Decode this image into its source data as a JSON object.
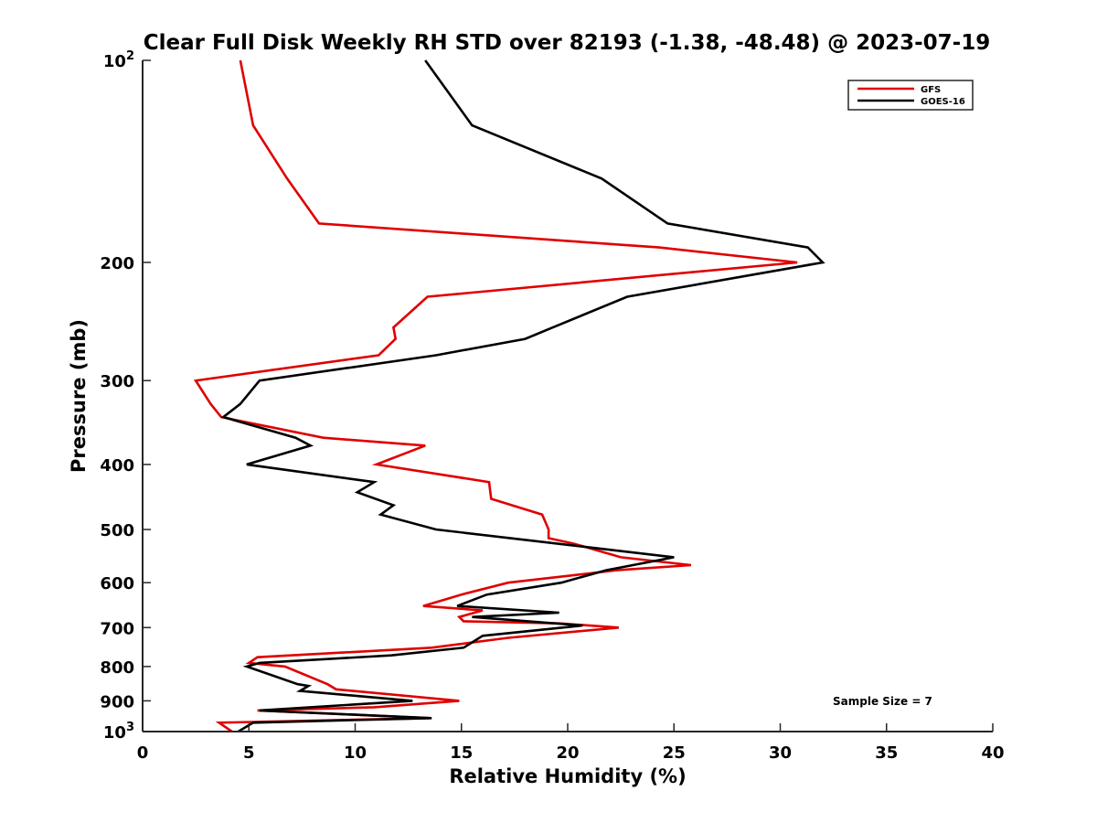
{
  "chart_data": {
    "type": "line",
    "title": "Clear Full Disk Weekly RH STD over 82193 (-1.38, -48.48) @ 2023-07-19",
    "xlabel": "Relative Humidity (%)",
    "ylabel": "Pressure (mb)",
    "xlim": [
      0,
      40
    ],
    "ylim": [
      100,
      1000
    ],
    "y_scale": "log",
    "y_reversed": true,
    "x_ticks": [
      "0",
      "5",
      "10",
      "15",
      "20",
      "25",
      "30",
      "35",
      "40"
    ],
    "y_ticks": [
      {
        "value": 100,
        "label": "10",
        "sup": "2"
      },
      {
        "value": 200,
        "label": "200"
      },
      {
        "value": 300,
        "label": "300"
      },
      {
        "value": 400,
        "label": "400"
      },
      {
        "value": 500,
        "label": "500"
      },
      {
        "value": 600,
        "label": "600"
      },
      {
        "value": 700,
        "label": "700"
      },
      {
        "value": 800,
        "label": "800"
      },
      {
        "value": 900,
        "label": "900"
      },
      {
        "value": 1000,
        "label": "10",
        "sup": "3"
      }
    ],
    "grid": false,
    "legend_position": "top-right",
    "series": [
      {
        "name": "GFS",
        "color": "#e00000",
        "points": [
          [
            4.6,
            100
          ],
          [
            5.2,
            125
          ],
          [
            6.8,
            150
          ],
          [
            8.3,
            175
          ],
          [
            24.3,
            190
          ],
          [
            30.8,
            200
          ],
          [
            13.4,
            225
          ],
          [
            11.8,
            250
          ],
          [
            11.9,
            260
          ],
          [
            11.1,
            275
          ],
          [
            2.5,
            300
          ],
          [
            3.2,
            325
          ],
          [
            3.7,
            340
          ],
          [
            8.5,
            365
          ],
          [
            13.3,
            375
          ],
          [
            11.0,
            400
          ],
          [
            16.3,
            425
          ],
          [
            16.4,
            450
          ],
          [
            18.8,
            475
          ],
          [
            19.1,
            500
          ],
          [
            19.1,
            515
          ],
          [
            20.3,
            525
          ],
          [
            22.5,
            550
          ],
          [
            25.8,
            565
          ],
          [
            22.3,
            575
          ],
          [
            17.2,
            600
          ],
          [
            15.0,
            625
          ],
          [
            13.2,
            650
          ],
          [
            16.0,
            660
          ],
          [
            14.9,
            675
          ],
          [
            15.1,
            685
          ],
          [
            19.6,
            690
          ],
          [
            22.4,
            700
          ],
          [
            17.2,
            725
          ],
          [
            13.6,
            750
          ],
          [
            5.4,
            775
          ],
          [
            5.0,
            790
          ],
          [
            6.7,
            800
          ],
          [
            8.7,
            850
          ],
          [
            9.1,
            865
          ],
          [
            14.9,
            900
          ],
          [
            10.9,
            920
          ],
          [
            5.4,
            930
          ],
          [
            13.5,
            955
          ],
          [
            3.6,
            970
          ],
          [
            4.2,
            1000
          ]
        ]
      },
      {
        "name": "GOES-16",
        "color": "#000000",
        "points": [
          [
            13.3,
            100
          ],
          [
            15.5,
            125
          ],
          [
            21.6,
            150
          ],
          [
            24.7,
            175
          ],
          [
            31.3,
            190
          ],
          [
            32.0,
            200
          ],
          [
            22.8,
            225
          ],
          [
            19.3,
            250
          ],
          [
            18.0,
            260
          ],
          [
            13.8,
            275
          ],
          [
            5.5,
            300
          ],
          [
            4.6,
            325
          ],
          [
            3.8,
            340
          ],
          [
            7.2,
            365
          ],
          [
            7.9,
            375
          ],
          [
            4.9,
            400
          ],
          [
            10.9,
            425
          ],
          [
            10.1,
            440
          ],
          [
            11.8,
            460
          ],
          [
            11.2,
            475
          ],
          [
            13.8,
            500
          ],
          [
            25.0,
            550
          ],
          [
            21.8,
            575
          ],
          [
            19.7,
            600
          ],
          [
            16.2,
            625
          ],
          [
            14.8,
            650
          ],
          [
            19.6,
            665
          ],
          [
            15.5,
            675
          ],
          [
            20.7,
            695
          ],
          [
            16.0,
            720
          ],
          [
            15.1,
            750
          ],
          [
            11.7,
            770
          ],
          [
            5.5,
            790
          ],
          [
            4.9,
            800
          ],
          [
            7.3,
            850
          ],
          [
            7.8,
            855
          ],
          [
            7.4,
            870
          ],
          [
            12.7,
            900
          ],
          [
            5.5,
            930
          ],
          [
            13.6,
            955
          ],
          [
            5.2,
            970
          ],
          [
            4.5,
            1000
          ]
        ]
      }
    ],
    "annotations": [
      "Sample Size = 7"
    ]
  }
}
